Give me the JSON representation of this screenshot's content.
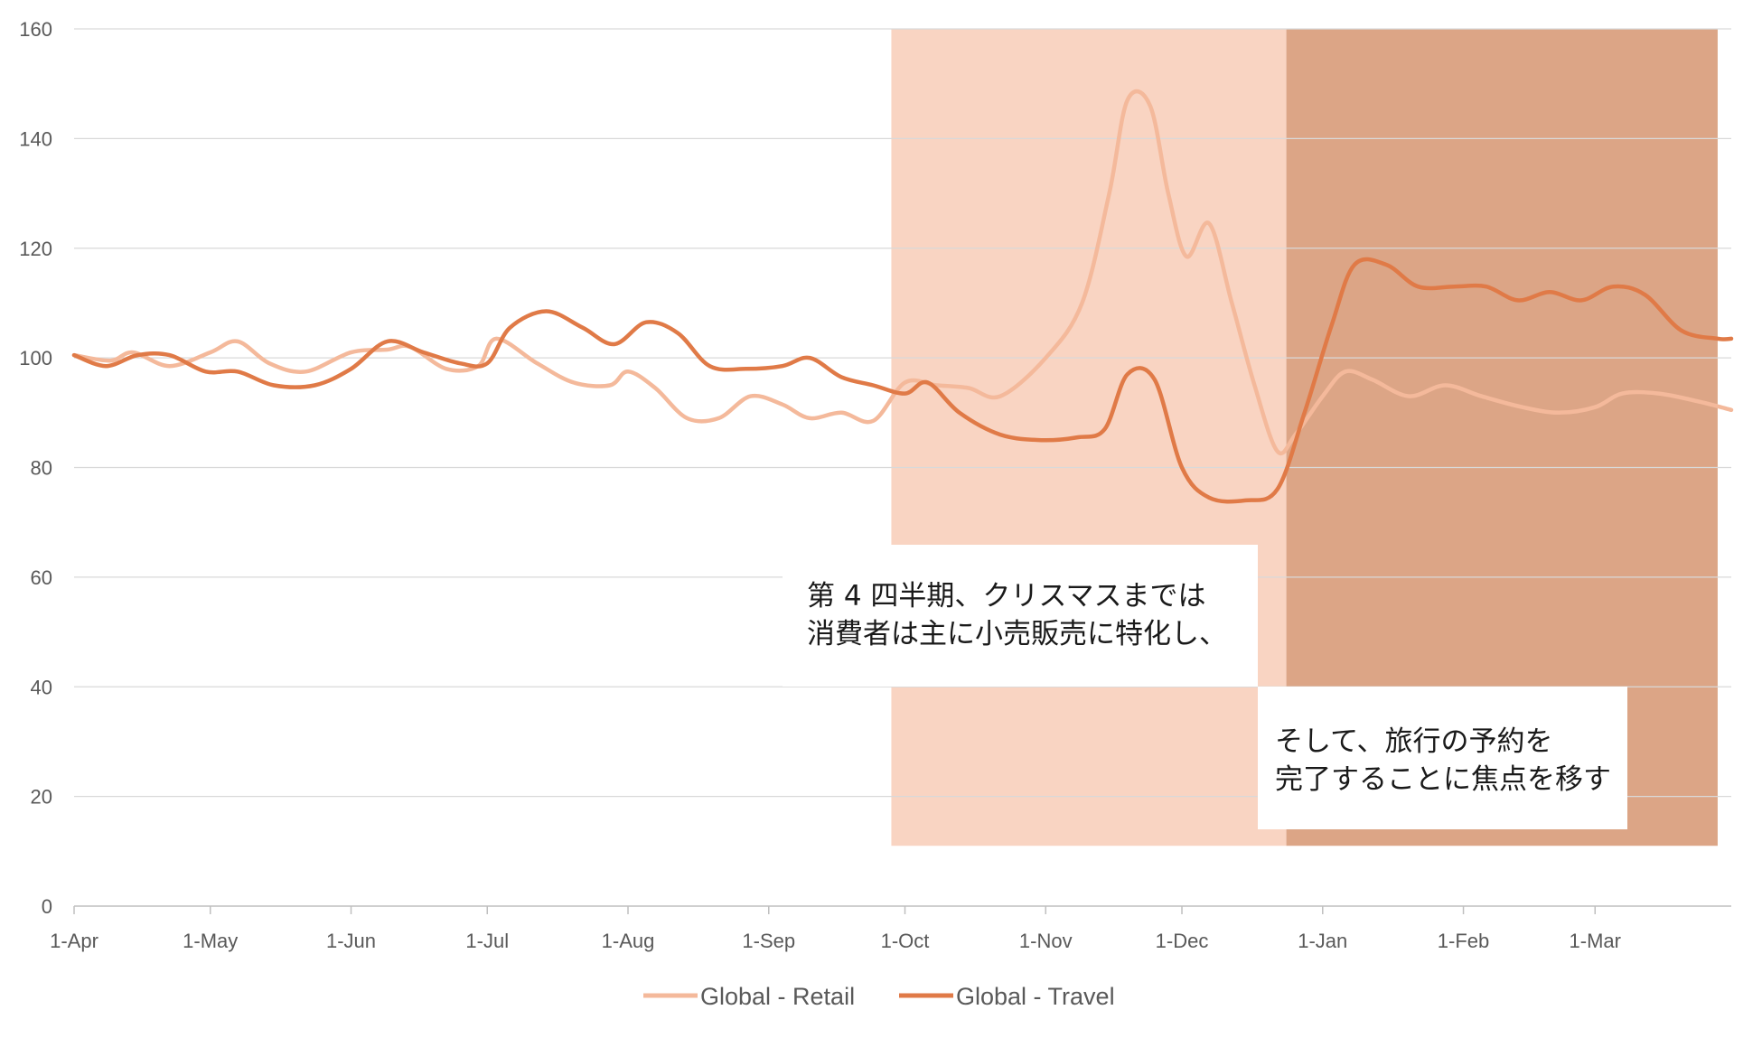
{
  "chart_data": {
    "type": "line",
    "title": "",
    "xlabel": "",
    "ylabel": "",
    "ylim": [
      0,
      160
    ],
    "yticks": [
      0,
      20,
      40,
      60,
      80,
      100,
      120,
      140,
      160
    ],
    "xlim": [
      "2023-04-01",
      "2024-03-31"
    ],
    "xticks": [
      {
        "date": "2023-04-01",
        "label": "1-Apr"
      },
      {
        "date": "2023-05-01",
        "label": "1-May"
      },
      {
        "date": "2023-06-01",
        "label": "1-Jun"
      },
      {
        "date": "2023-07-01",
        "label": "1-Jul"
      },
      {
        "date": "2023-08-01",
        "label": "1-Aug"
      },
      {
        "date": "2023-09-01",
        "label": "1-Sep"
      },
      {
        "date": "2023-10-01",
        "label": "1-Oct"
      },
      {
        "date": "2023-11-01",
        "label": "1-Nov"
      },
      {
        "date": "2023-12-01",
        "label": "1-Dec"
      },
      {
        "date": "2024-01-01",
        "label": "1-Jan"
      },
      {
        "date": "2024-02-01",
        "label": "1-Feb"
      },
      {
        "date": "2024-03-01",
        "label": "1-Mar"
      }
    ],
    "grid": true,
    "legend_position": "bottom",
    "series": [
      {
        "name": "Global - Retail",
        "color": "#f4b99b",
        "points": [
          [
            "2023-04-01",
            100.5
          ],
          [
            "2023-04-09",
            99.5
          ],
          [
            "2023-04-14",
            101
          ],
          [
            "2023-04-22",
            98.5
          ],
          [
            "2023-05-01",
            101
          ],
          [
            "2023-05-07",
            103
          ],
          [
            "2023-05-14",
            99
          ],
          [
            "2023-05-22",
            97.5
          ],
          [
            "2023-06-01",
            101
          ],
          [
            "2023-06-09",
            101.5
          ],
          [
            "2023-06-14",
            102
          ],
          [
            "2023-06-22",
            98
          ],
          [
            "2023-06-29",
            98.5
          ],
          [
            "2023-07-03",
            103.5
          ],
          [
            "2023-07-12",
            99
          ],
          [
            "2023-07-20",
            95.5
          ],
          [
            "2023-07-28",
            95
          ],
          [
            "2023-08-01",
            97.5
          ],
          [
            "2023-08-07",
            94.5
          ],
          [
            "2023-08-14",
            89
          ],
          [
            "2023-08-21",
            89
          ],
          [
            "2023-08-28",
            93
          ],
          [
            "2023-09-04",
            91.5
          ],
          [
            "2023-09-10",
            89
          ],
          [
            "2023-09-17",
            90
          ],
          [
            "2023-09-24",
            88.5
          ],
          [
            "2023-10-01",
            95.5
          ],
          [
            "2023-10-08",
            95
          ],
          [
            "2023-10-15",
            94.5
          ],
          [
            "2023-10-22",
            93
          ],
          [
            "2023-11-01",
            100
          ],
          [
            "2023-11-09",
            110
          ],
          [
            "2023-11-15",
            130
          ],
          [
            "2023-11-19",
            147
          ],
          [
            "2023-11-24",
            146
          ],
          [
            "2023-11-28",
            130
          ],
          [
            "2023-12-02",
            118.5
          ],
          [
            "2023-12-07",
            124.5
          ],
          [
            "2023-12-12",
            110
          ],
          [
            "2023-12-17",
            95
          ],
          [
            "2023-12-22",
            83
          ],
          [
            "2023-12-26",
            86
          ],
          [
            "2024-01-01",
            93
          ],
          [
            "2024-01-06",
            97.5
          ],
          [
            "2024-01-12",
            96
          ],
          [
            "2024-01-20",
            93
          ],
          [
            "2024-01-28",
            95
          ],
          [
            "2024-02-05",
            93
          ],
          [
            "2024-02-14",
            91
          ],
          [
            "2024-02-22",
            90
          ],
          [
            "2024-03-01",
            91
          ],
          [
            "2024-03-07",
            93.5
          ],
          [
            "2024-03-15",
            93.5
          ],
          [
            "2024-03-24",
            92
          ],
          [
            "2024-03-31",
            90.5
          ]
        ]
      },
      {
        "name": "Global - Travel",
        "color": "#e07a47",
        "points": [
          [
            "2023-04-01",
            100.5
          ],
          [
            "2023-04-08",
            98.5
          ],
          [
            "2023-04-15",
            100.5
          ],
          [
            "2023-04-22",
            100.5
          ],
          [
            "2023-04-30",
            97.5
          ],
          [
            "2023-05-07",
            97.5
          ],
          [
            "2023-05-15",
            95
          ],
          [
            "2023-05-24",
            95
          ],
          [
            "2023-06-01",
            98
          ],
          [
            "2023-06-09",
            103
          ],
          [
            "2023-06-17",
            101
          ],
          [
            "2023-06-25",
            99
          ],
          [
            "2023-07-01",
            99
          ],
          [
            "2023-07-06",
            105.5
          ],
          [
            "2023-07-14",
            108.5
          ],
          [
            "2023-07-22",
            105.5
          ],
          [
            "2023-07-29",
            102.5
          ],
          [
            "2023-08-05",
            106.5
          ],
          [
            "2023-08-12",
            104.5
          ],
          [
            "2023-08-19",
            98.5
          ],
          [
            "2023-08-27",
            98
          ],
          [
            "2023-09-04",
            98.5
          ],
          [
            "2023-09-10",
            100
          ],
          [
            "2023-09-17",
            96.5
          ],
          [
            "2023-09-24",
            95
          ],
          [
            "2023-10-01",
            93.5
          ],
          [
            "2023-10-06",
            95.5
          ],
          [
            "2023-10-13",
            90
          ],
          [
            "2023-10-22",
            86
          ],
          [
            "2023-10-31",
            85
          ],
          [
            "2023-11-08",
            85.5
          ],
          [
            "2023-11-14",
            87
          ],
          [
            "2023-11-19",
            97
          ],
          [
            "2023-11-25",
            96
          ],
          [
            "2023-12-01",
            80
          ],
          [
            "2023-12-07",
            74.5
          ],
          [
            "2023-12-15",
            74
          ],
          [
            "2023-12-22",
            76
          ],
          [
            "2023-12-28",
            90
          ],
          [
            "2024-01-03",
            106
          ],
          [
            "2024-01-08",
            117
          ],
          [
            "2024-01-15",
            117
          ],
          [
            "2024-01-22",
            113
          ],
          [
            "2024-01-30",
            113
          ],
          [
            "2024-02-06",
            113
          ],
          [
            "2024-02-13",
            110.5
          ],
          [
            "2024-02-20",
            112
          ],
          [
            "2024-02-27",
            110.5
          ],
          [
            "2024-03-05",
            113
          ],
          [
            "2024-03-12",
            111.5
          ],
          [
            "2024-03-20",
            105
          ],
          [
            "2024-03-28",
            103.5
          ],
          [
            "2024-03-31",
            103.5
          ]
        ]
      }
    ],
    "bands": [
      {
        "name": "q4-band",
        "x_start": "2023-09-28",
        "x_end": "2023-12-24",
        "y_start": 11,
        "y_end": 160,
        "color": "#f9d4c2"
      },
      {
        "name": "jan-mar-band",
        "x_start": "2023-12-24",
        "x_end": "2024-03-28",
        "y_start": 11,
        "y_end": 160,
        "color": "#dca586"
      }
    ],
    "annotations": [
      {
        "name": "q4-annotation",
        "lines": [
          "第 4 四半期、クリスマスまでは",
          "消費者は主に小売販売に特化し、"
        ]
      },
      {
        "name": "travel-annotation",
        "lines": [
          "そして、旅行の予約を",
          "完了することに焦点を移す"
        ]
      }
    ]
  }
}
